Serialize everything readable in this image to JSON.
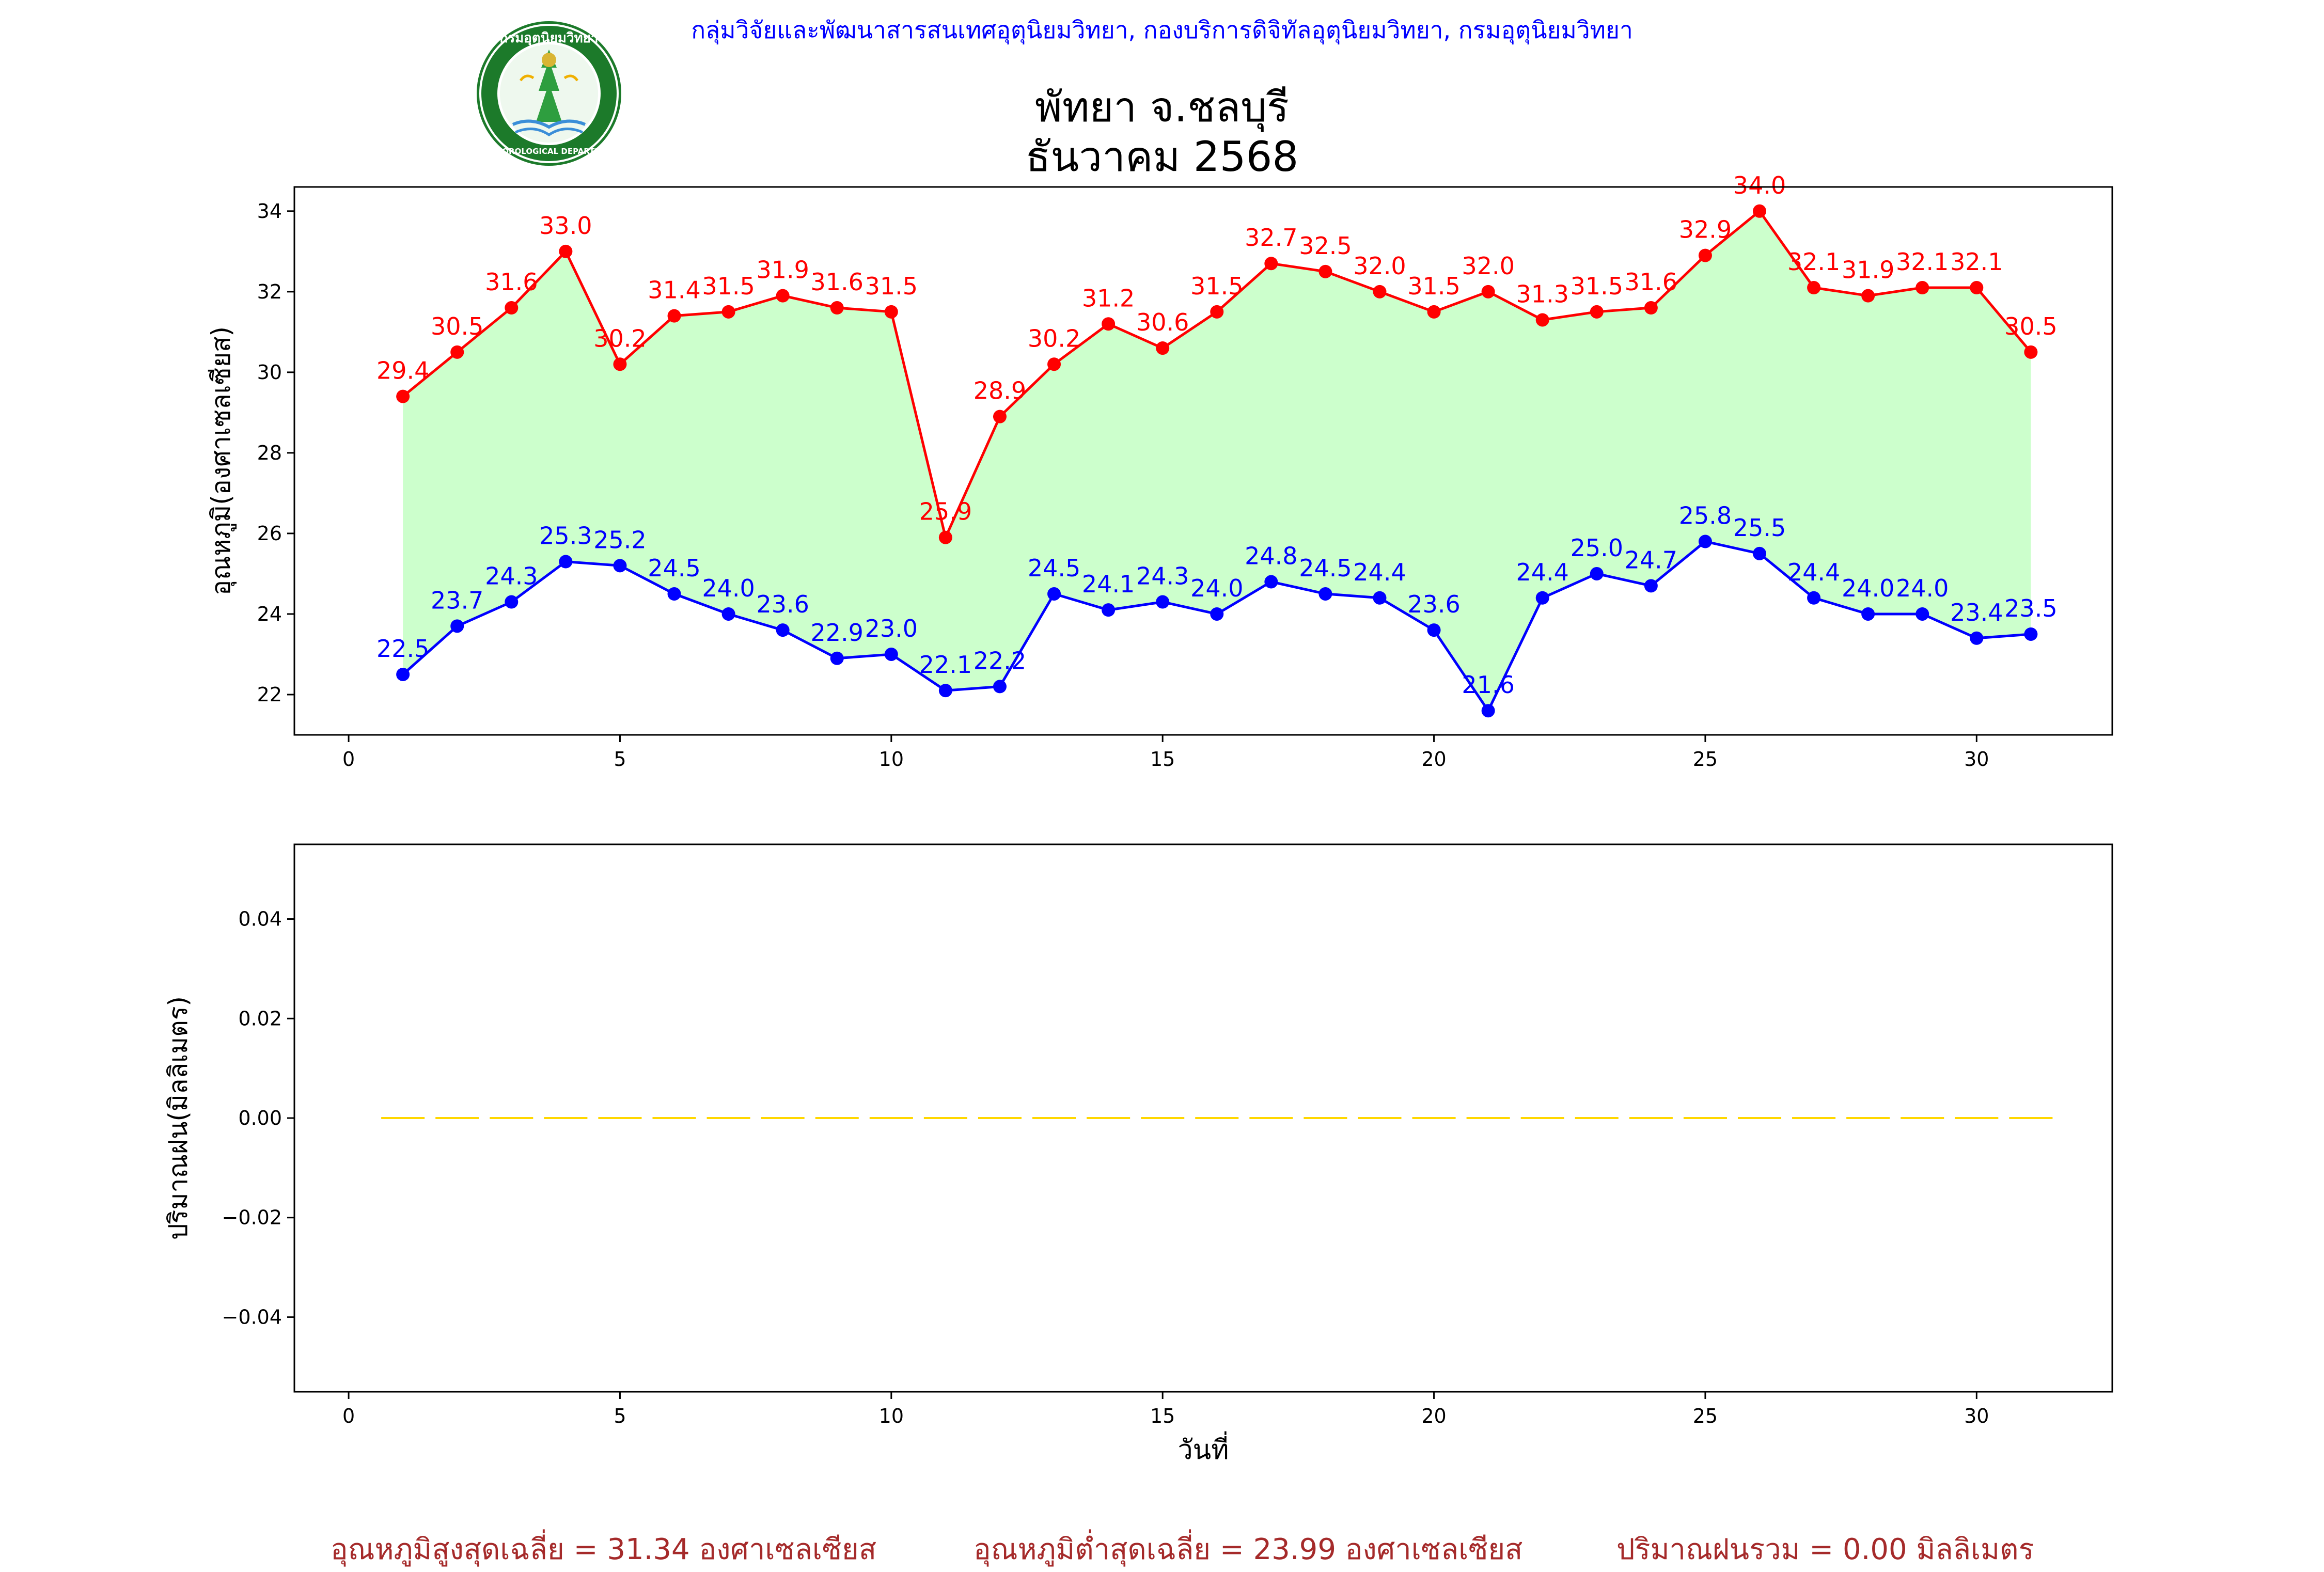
{
  "header": {
    "org_text": "กลุ่มวิจัยและพัฒนาสารสนเทศอุตุนิยมวิทยา, กองบริการดิจิทัลอุตุนิยมวิทยา, กรมอุตุนิยมวิทยา",
    "logo_text_top": "กรมอุตุนิยมวิทยา",
    "logo_text_bottom": "METEOROLOGICAL DEPARTMENT"
  },
  "title": {
    "line1": "พัทยา จ.ชลบุรี",
    "line2": "ธันวาคม 2568"
  },
  "chart_data": [
    {
      "type": "line",
      "panel": "temperature",
      "ylabel": "อุณหภูมิ(องศาเซลเซียส)",
      "xlabel": "",
      "xlim": [
        -1,
        32.5
      ],
      "ylim": [
        21,
        34.6
      ],
      "xticks": [
        0,
        5,
        10,
        15,
        20,
        25,
        30
      ],
      "yticks": [
        22,
        24,
        26,
        28,
        30,
        32,
        34
      ],
      "x": [
        1,
        2,
        3,
        4,
        5,
        6,
        7,
        8,
        9,
        10,
        11,
        12,
        13,
        14,
        15,
        16,
        17,
        18,
        19,
        20,
        21,
        22,
        23,
        24,
        25,
        26,
        27,
        28,
        29,
        30,
        31
      ],
      "series": [
        {
          "color": "#ff0000",
          "values": [
            29.4,
            30.5,
            31.6,
            33.0,
            30.2,
            31.4,
            31.5,
            31.9,
            31.6,
            31.5,
            25.9,
            28.9,
            30.2,
            31.2,
            30.6,
            31.5,
            32.7,
            32.5,
            32.0,
            31.5,
            32.0,
            31.3,
            31.5,
            31.6,
            32.9,
            34.0,
            32.1,
            31.9,
            32.1,
            32.1,
            30.5
          ],
          "labels": [
            "29.4",
            "30.5",
            "31.6",
            "33.0",
            "30.2",
            "31.4",
            "31.5",
            "31.9",
            "31.6",
            "31.5",
            "25.9",
            "28.9",
            "30.2",
            "31.2",
            "30.6",
            "31.5",
            "32.7",
            "32.5",
            "32.0",
            "31.5",
            "32.0",
            "31.3",
            "31.5",
            "31.6",
            "32.9",
            "34.0",
            "32.1",
            "31.9",
            "32.1",
            "32.1",
            "30.5"
          ]
        },
        {
          "color": "#0000ff",
          "values": [
            22.5,
            23.7,
            24.3,
            25.3,
            25.2,
            24.5,
            24.0,
            23.6,
            22.9,
            23.0,
            22.1,
            22.2,
            24.5,
            24.1,
            24.3,
            24.0,
            24.8,
            24.5,
            24.4,
            23.6,
            21.6,
            24.4,
            25.0,
            24.7,
            25.8,
            25.5,
            24.4,
            24.0,
            24.0,
            23.4,
            23.5
          ],
          "labels": [
            "22.5",
            "23.7",
            "24.3",
            "25.3",
            "25.2",
            "24.5",
            "24.0",
            "23.6",
            "22.9",
            "23.0",
            "22.1",
            "22.2",
            "24.5",
            "24.1",
            "24.3",
            "24.0",
            "24.8",
            "24.5",
            "24.4",
            "23.6",
            "21.6",
            "24.4",
            "25.0",
            "24.7",
            "25.8",
            "25.5",
            "24.4",
            "24.0",
            "24.0",
            "23.4",
            "23.5"
          ]
        }
      ],
      "fill_color": "#ccffcc"
    },
    {
      "type": "bar",
      "panel": "rainfall",
      "ylabel": "ปริมาณฝน(มิลลิเมตร)",
      "xlabel": "วันที่",
      "xlim": [
        -1,
        32.5
      ],
      "ylim": [
        -0.055,
        0.055
      ],
      "xticks": [
        0,
        5,
        10,
        15,
        20,
        25,
        30
      ],
      "yticks": [
        0.04,
        0.02,
        0.0,
        -0.02,
        -0.04
      ],
      "ytick_labels": [
        "0.04",
        "0.02",
        "0.00",
        "−0.02",
        "−0.04"
      ],
      "x": [
        1,
        2,
        3,
        4,
        5,
        6,
        7,
        8,
        9,
        10,
        11,
        12,
        13,
        14,
        15,
        16,
        17,
        18,
        19,
        20,
        21,
        22,
        23,
        24,
        25,
        26,
        27,
        28,
        29,
        30,
        31
      ],
      "values": [
        0,
        0,
        0,
        0,
        0,
        0,
        0,
        0,
        0,
        0,
        0,
        0,
        0,
        0,
        0,
        0,
        0,
        0,
        0,
        0,
        0,
        0,
        0,
        0,
        0,
        0,
        0,
        0,
        0,
        0,
        0
      ],
      "color": "#ffd700"
    }
  ],
  "footer": {
    "avg_max": "อุณหภูมิสูงสุดเฉลี่ย = 31.34 องศาเซลเซียส",
    "avg_min": "อุณหภูมิต่ำสุดเฉลี่ย = 23.99 องศาเซลเซียส",
    "total_rain": "ปริมาณฝนรวม = 0.00 มิลลิเมตร"
  }
}
